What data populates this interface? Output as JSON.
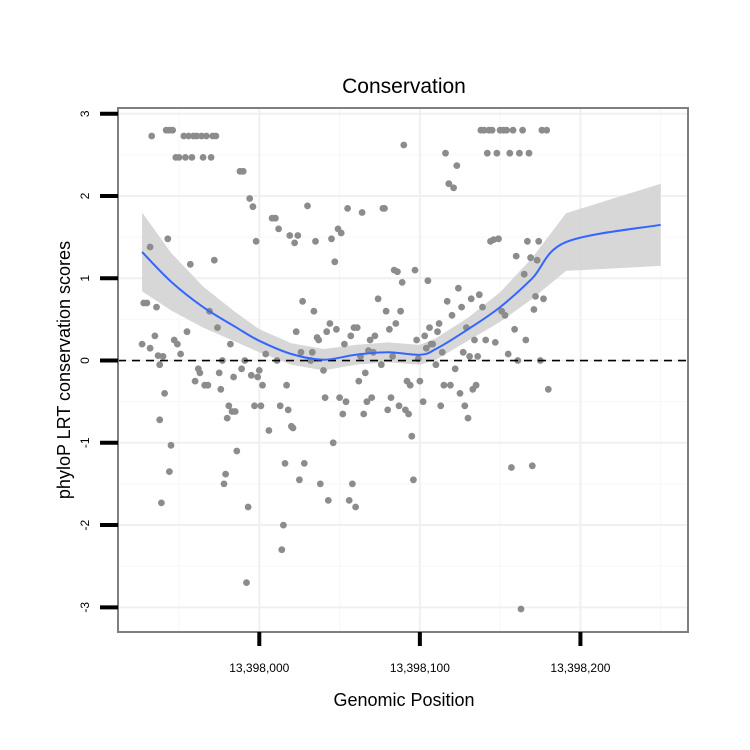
{
  "chart_data": {
    "type": "scatter",
    "title": "Conservation",
    "xlabel": "Genomic Position",
    "ylabel": "phyloP LRT conservation scores",
    "xlim": [
      13397912,
      13398267
    ],
    "ylim": [
      -3.3,
      3.07
    ],
    "x_ticks": [
      {
        "value": 13398000,
        "label": "13,398,000"
      },
      {
        "value": 13398100,
        "label": "13,398,100"
      },
      {
        "value": 13398200,
        "label": "13,398,200"
      }
    ],
    "y_ticks": [
      {
        "value": -3,
        "label": "-3"
      },
      {
        "value": -2,
        "label": "-2"
      },
      {
        "value": -1,
        "label": "-1"
      },
      {
        "value": 0,
        "label": "0"
      },
      {
        "value": 1,
        "label": "1"
      },
      {
        "value": 2,
        "label": "2"
      },
      {
        "value": 3,
        "label": "3"
      }
    ],
    "grid": true,
    "reference_line": {
      "y": 0,
      "style": "dashed"
    },
    "point_color": "#8c8c8c",
    "smooth_color": "#3366ff",
    "ribbon_color": "#d3d3d3",
    "points": [
      [
        13397927,
        0.2
      ],
      [
        13397928,
        0.7
      ],
      [
        13397930,
        0.7
      ],
      [
        13397932,
        1.38
      ],
      [
        13397932,
        0.15
      ],
      [
        13397933,
        2.73
      ],
      [
        13397935,
        0.3
      ],
      [
        13397936,
        0.65
      ],
      [
        13397937,
        0.06
      ],
      [
        13397938,
        -0.05
      ],
      [
        13397938,
        -0.72
      ],
      [
        13397939,
        -1.73
      ],
      [
        13397940,
        0.05
      ],
      [
        13397941,
        -0.4
      ],
      [
        13397942,
        2.8
      ],
      [
        13397943,
        1.48
      ],
      [
        13397944,
        -1.35
      ],
      [
        13397944,
        2.8
      ],
      [
        13397945,
        -1.03
      ],
      [
        13397946,
        2.8
      ],
      [
        13397947,
        0.25
      ],
      [
        13397948,
        2.47
      ],
      [
        13397949,
        0.2
      ],
      [
        13397950,
        2.47
      ],
      [
        13397951,
        0.08
      ],
      [
        13397953,
        2.73
      ],
      [
        13397954,
        2.47
      ],
      [
        13397955,
        0.35
      ],
      [
        13397956,
        2.73
      ],
      [
        13397957,
        1.17
      ],
      [
        13397958,
        2.47
      ],
      [
        13397959,
        2.73
      ],
      [
        13397960,
        -0.25
      ],
      [
        13397961,
        2.73
      ],
      [
        13397962,
        -0.1
      ],
      [
        13397963,
        -0.15
      ],
      [
        13397964,
        2.73
      ],
      [
        13397965,
        2.47
      ],
      [
        13397966,
        -0.3
      ],
      [
        13397967,
        2.73
      ],
      [
        13397968,
        -0.3
      ],
      [
        13397969,
        0.6
      ],
      [
        13397970,
        2.47
      ],
      [
        13397971,
        2.73
      ],
      [
        13397972,
        1.22
      ],
      [
        13397973,
        2.73
      ],
      [
        13397974,
        0.4
      ],
      [
        13397975,
        -0.15
      ],
      [
        13397976,
        -0.35
      ],
      [
        13397977,
        0.0
      ],
      [
        13397978,
        -1.5
      ],
      [
        13397979,
        -1.38
      ],
      [
        13397980,
        -0.7
      ],
      [
        13397981,
        -0.55
      ],
      [
        13397982,
        0.2
      ],
      [
        13397983,
        -0.62
      ],
      [
        13397984,
        -0.2
      ],
      [
        13397985,
        -0.62
      ],
      [
        13397986,
        -1.1
      ],
      [
        13397988,
        2.3
      ],
      [
        13397989,
        -0.1
      ],
      [
        13397990,
        2.3
      ],
      [
        13397991,
        0.0
      ],
      [
        13397992,
        -2.7
      ],
      [
        13397993,
        -1.78
      ],
      [
        13397994,
        1.97
      ],
      [
        13397995,
        -0.18
      ],
      [
        13397996,
        1.87
      ],
      [
        13397997,
        -0.55
      ],
      [
        13397998,
        1.45
      ],
      [
        13397999,
        -0.2
      ],
      [
        13398000,
        -0.12
      ],
      [
        13398001,
        -0.55
      ],
      [
        13398002,
        -0.3
      ],
      [
        13398004,
        0.08
      ],
      [
        13398006,
        -0.85
      ],
      [
        13398008,
        1.73
      ],
      [
        13398010,
        1.73
      ],
      [
        13398011,
        0.0
      ],
      [
        13398012,
        1.6
      ],
      [
        13398013,
        -0.55
      ],
      [
        13398014,
        -2.3
      ],
      [
        13398015,
        -2.0
      ],
      [
        13398016,
        -1.25
      ],
      [
        13398017,
        -0.3
      ],
      [
        13398018,
        -0.6
      ],
      [
        13398019,
        1.52
      ],
      [
        13398020,
        -0.8
      ],
      [
        13398021,
        -0.82
      ],
      [
        13398022,
        1.43
      ],
      [
        13398023,
        0.35
      ],
      [
        13398024,
        1.52
      ],
      [
        13398025,
        -1.45
      ],
      [
        13398026,
        0.1
      ],
      [
        13398027,
        0.72
      ],
      [
        13398028,
        -1.25
      ],
      [
        13398030,
        1.88
      ],
      [
        13398032,
        0.0
      ],
      [
        13398033,
        0.1
      ],
      [
        13398034,
        0.6
      ],
      [
        13398035,
        1.45
      ],
      [
        13398036,
        0.28
      ],
      [
        13398037,
        0.25
      ],
      [
        13398038,
        -1.5
      ],
      [
        13398040,
        -0.12
      ],
      [
        13398041,
        -0.45
      ],
      [
        13398042,
        0.35
      ],
      [
        13398043,
        -1.7
      ],
      [
        13398044,
        0.45
      ],
      [
        13398045,
        1.48
      ],
      [
        13398046,
        -1.0
      ],
      [
        13398047,
        1.2
      ],
      [
        13398048,
        0.38
      ],
      [
        13398049,
        1.6
      ],
      [
        13398050,
        -0.45
      ],
      [
        13398051,
        1.55
      ],
      [
        13398052,
        -0.65
      ],
      [
        13398053,
        0.2
      ],
      [
        13398054,
        -0.5
      ],
      [
        13398055,
        1.85
      ],
      [
        13398056,
        -1.7
      ],
      [
        13398057,
        0.3
      ],
      [
        13398058,
        -1.5
      ],
      [
        13398059,
        0.4
      ],
      [
        13398060,
        -1.78
      ],
      [
        13398061,
        0.4
      ],
      [
        13398062,
        -0.25
      ],
      [
        13398063,
        0.05
      ],
      [
        13398064,
        1.8
      ],
      [
        13398065,
        -0.65
      ],
      [
        13398066,
        -0.15
      ],
      [
        13398067,
        -0.5
      ],
      [
        13398068,
        0.12
      ],
      [
        13398069,
        0.25
      ],
      [
        13398070,
        -0.45
      ],
      [
        13398071,
        0.1
      ],
      [
        13398072,
        0.3
      ],
      [
        13398074,
        0.75
      ],
      [
        13398076,
        -0.05
      ],
      [
        13398077,
        1.85
      ],
      [
        13398078,
        1.85
      ],
      [
        13398079,
        0.6
      ],
      [
        13398080,
        -0.6
      ],
      [
        13398081,
        0.38
      ],
      [
        13398082,
        -0.45
      ],
      [
        13398083,
        0.05
      ],
      [
        13398084,
        1.1
      ],
      [
        13398085,
        0.45
      ],
      [
        13398086,
        1.08
      ],
      [
        13398087,
        -0.55
      ],
      [
        13398088,
        0.6
      ],
      [
        13398089,
        0.95
      ],
      [
        13398090,
        2.62
      ],
      [
        13398091,
        -0.6
      ],
      [
        13398092,
        -0.25
      ],
      [
        13398093,
        -0.65
      ],
      [
        13398094,
        -0.3
      ],
      [
        13398095,
        -0.92
      ],
      [
        13398096,
        -1.45
      ],
      [
        13398097,
        1.1
      ],
      [
        13398098,
        0.25
      ],
      [
        13398099,
        0.02
      ],
      [
        13398100,
        -0.25
      ],
      [
        13398102,
        -0.5
      ],
      [
        13398103,
        0.3
      ],
      [
        13398104,
        0.15
      ],
      [
        13398105,
        0.97
      ],
      [
        13398106,
        0.4
      ],
      [
        13398107,
        0.2
      ],
      [
        13398108,
        0.2
      ],
      [
        13398110,
        -0.05
      ],
      [
        13398111,
        0.35
      ],
      [
        13398112,
        0.45
      ],
      [
        13398113,
        -0.55
      ],
      [
        13398114,
        0.1
      ],
      [
        13398115,
        -0.3
      ],
      [
        13398116,
        2.52
      ],
      [
        13398117,
        0.72
      ],
      [
        13398118,
        2.15
      ],
      [
        13398119,
        -0.3
      ],
      [
        13398120,
        0.55
      ],
      [
        13398121,
        2.1
      ],
      [
        13398122,
        -0.1
      ],
      [
        13398123,
        2.37
      ],
      [
        13398124,
        0.88
      ],
      [
        13398125,
        -0.4
      ],
      [
        13398126,
        0.65
      ],
      [
        13398127,
        0.1
      ],
      [
        13398128,
        -0.55
      ],
      [
        13398129,
        0.4
      ],
      [
        13398130,
        -0.7
      ],
      [
        13398131,
        0.05
      ],
      [
        13398132,
        0.75
      ],
      [
        13398133,
        -0.35
      ],
      [
        13398134,
        0.25
      ],
      [
        13398135,
        -0.3
      ],
      [
        13398136,
        0.05
      ],
      [
        13398137,
        0.8
      ],
      [
        13398138,
        2.8
      ],
      [
        13398139,
        0.65
      ],
      [
        13398140,
        2.8
      ],
      [
        13398141,
        0.25
      ],
      [
        13398142,
        2.52
      ],
      [
        13398143,
        2.8
      ],
      [
        13398144,
        1.45
      ],
      [
        13398145,
        2.8
      ],
      [
        13398146,
        1.47
      ],
      [
        13398147,
        0.22
      ],
      [
        13398148,
        2.52
      ],
      [
        13398149,
        1.48
      ],
      [
        13398150,
        2.8
      ],
      [
        13398151,
        0.6
      ],
      [
        13398152,
        2.8
      ],
      [
        13398153,
        0.55
      ],
      [
        13398154,
        2.8
      ],
      [
        13398155,
        0.08
      ],
      [
        13398156,
        2.52
      ],
      [
        13398157,
        -1.3
      ],
      [
        13398158,
        2.8
      ],
      [
        13398159,
        0.38
      ],
      [
        13398160,
        1.27
      ],
      [
        13398161,
        0.0
      ],
      [
        13398162,
        2.52
      ],
      [
        13398163,
        -3.02
      ],
      [
        13398164,
        2.8
      ],
      [
        13398165,
        1.05
      ],
      [
        13398166,
        0.25
      ],
      [
        13398167,
        1.45
      ],
      [
        13398168,
        2.52
      ],
      [
        13398169,
        1.25
      ],
      [
        13398170,
        -1.28
      ],
      [
        13398171,
        0.62
      ],
      [
        13398172,
        0.78
      ],
      [
        13398173,
        1.22
      ],
      [
        13398174,
        1.45
      ],
      [
        13398175,
        0.0
      ],
      [
        13398176,
        2.8
      ],
      [
        13398177,
        0.75
      ],
      [
        13398179,
        2.8
      ],
      [
        13398180,
        -0.35
      ]
    ],
    "smooth": [
      [
        13397927,
        1.32
      ],
      [
        13397945,
        0.96
      ],
      [
        13397965,
        0.65
      ],
      [
        13397985,
        0.41
      ],
      [
        13398000,
        0.24
      ],
      [
        13398020,
        0.08
      ],
      [
        13398040,
        0.01
      ],
      [
        13398060,
        0.07
      ],
      [
        13398080,
        0.1
      ],
      [
        13398100,
        0.07
      ],
      [
        13398110,
        0.14
      ],
      [
        13398130,
        0.38
      ],
      [
        13398150,
        0.65
      ],
      [
        13398170,
        1.0
      ],
      [
        13398191,
        1.44
      ],
      [
        13398250,
        1.65
      ]
    ],
    "ribbon_halfwidth": [
      [
        13397927,
        0.48
      ],
      [
        13397945,
        0.35
      ],
      [
        13397965,
        0.25
      ],
      [
        13397985,
        0.18
      ],
      [
        13398000,
        0.14
      ],
      [
        13398020,
        0.13
      ],
      [
        13398040,
        0.13
      ],
      [
        13398060,
        0.12
      ],
      [
        13398080,
        0.12
      ],
      [
        13398100,
        0.12
      ],
      [
        13398110,
        0.13
      ],
      [
        13398130,
        0.14
      ],
      [
        13398150,
        0.18
      ],
      [
        13398170,
        0.25
      ],
      [
        13398191,
        0.35
      ],
      [
        13398250,
        0.5
      ]
    ]
  }
}
